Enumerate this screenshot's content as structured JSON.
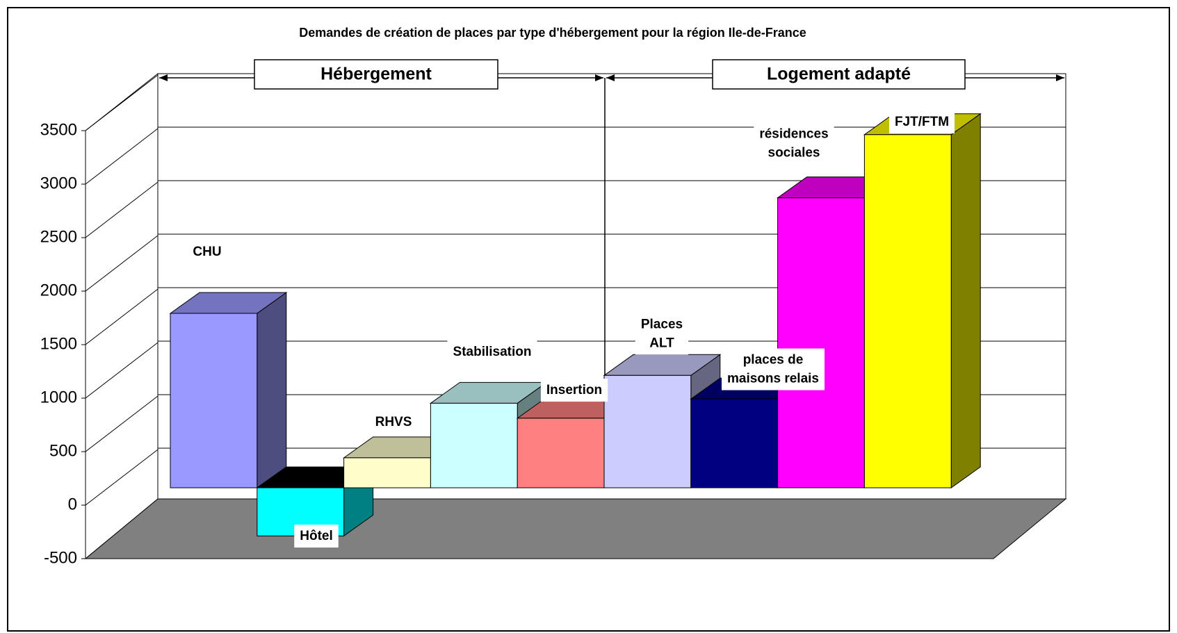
{
  "chart_data": {
    "type": "bar3d",
    "title": "Demandes de création de places par type d'hébergement pour la région Ile-de-France",
    "groups": [
      "Hébergement",
      "Logement adapté"
    ],
    "categories": [
      "CHU",
      "Hôtel",
      "RHVS",
      "Stabilisation",
      "Insertion",
      "Places\nALT",
      "places de\nmaisons relais",
      "résidences\nsociales",
      "FJT/FTM"
    ],
    "values": [
      1630,
      -450,
      280,
      790,
      650,
      1050,
      830,
      2710,
      3300
    ],
    "colors": [
      "#9999ff",
      "#00ffff",
      "#ffffcc",
      "#ccffff",
      "#ff8080",
      "#ccccff",
      "#000080",
      "#ff00ff",
      "#ffff00"
    ],
    "ylim": [
      -500,
      3500
    ],
    "yticks": [
      -500,
      0,
      500,
      1000,
      1500,
      2000,
      2500,
      3000,
      3500
    ],
    "grid": true
  }
}
